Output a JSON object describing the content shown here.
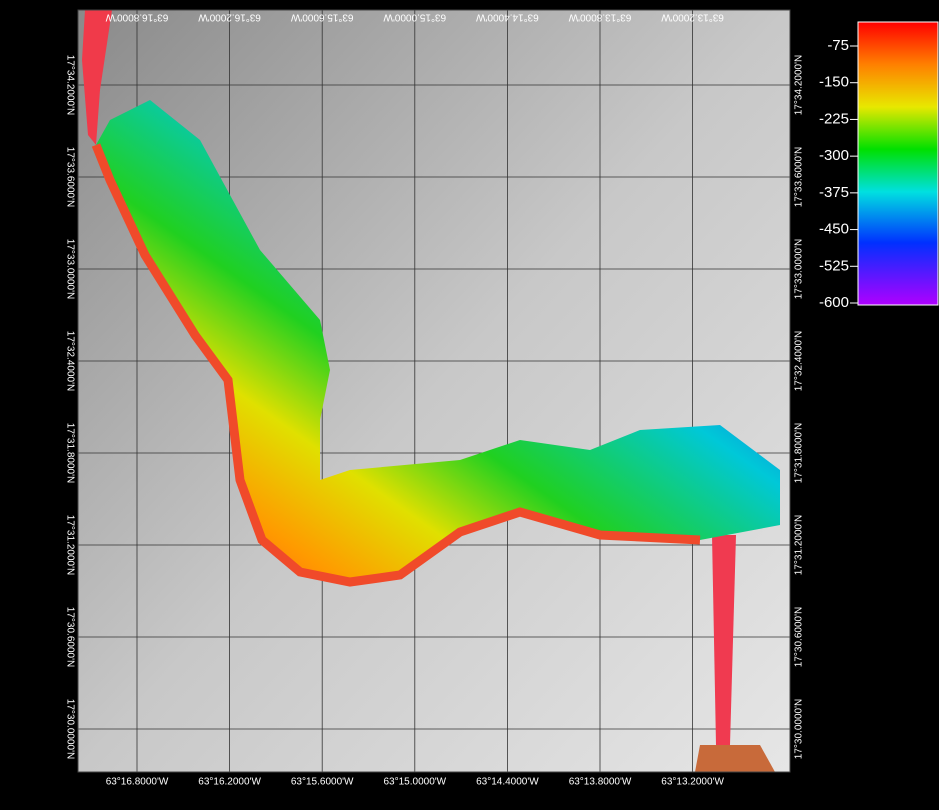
{
  "map": {
    "lon_labels": [
      "63°16.8000'W",
      "63°16.2000'W",
      "63°15.6000'W",
      "63°15.0000'W",
      "63°14.4000'W",
      "63°13.8000'W",
      "63°13.2000'W"
    ],
    "lat_labels": [
      "17°34.2000'N",
      "17°33.6000'N",
      "17°33.0000'N",
      "17°32.4000'N",
      "17°31.8000'N",
      "17°31.2000'N",
      "17°30.6000'N",
      "17°30.0000'N"
    ]
  },
  "colorbar": {
    "ticks": [
      -75,
      -150,
      -225,
      -300,
      -375,
      -450,
      -525,
      -600
    ]
  }
}
